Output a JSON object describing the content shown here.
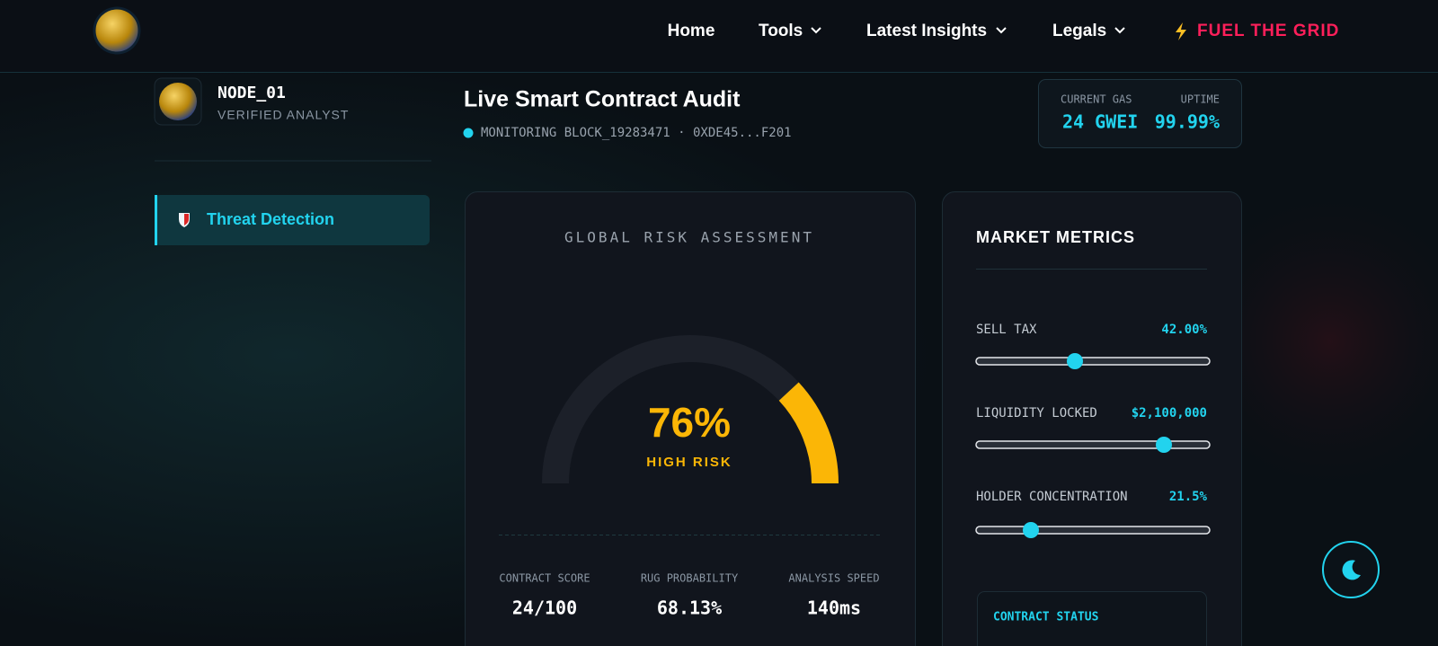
{
  "nav": {
    "items": [
      "Home",
      "Tools",
      "Latest Insights",
      "Legals"
    ],
    "cta": "FUEL THE GRID"
  },
  "sidebar": {
    "user": "NODE_01",
    "role": "VERIFIED ANALYST",
    "menu": [
      "Threat Detection"
    ]
  },
  "header": {
    "title": "Live Smart Contract Audit",
    "status": "MONITORING BLOCK_19283471 · 0XDE45...F201",
    "stats": [
      {
        "label": "CURRENT GAS",
        "value": "24 GWEI"
      },
      {
        "label": "UPTIME",
        "value": "99.99%"
      }
    ]
  },
  "risk_card": {
    "title": "GLOBAL RISK ASSESSMENT",
    "score": "76%",
    "level": "HIGH RISK",
    "stats": [
      {
        "label": "CONTRACT SCORE",
        "value": "24/100"
      },
      {
        "label": "RUG PROBABILITY",
        "value": "68.13%"
      },
      {
        "label": "ANALYSIS SPEED",
        "value": "140ms"
      }
    ]
  },
  "market_card": {
    "title": "MARKET METRICS",
    "metrics": [
      {
        "label": "SELL TAX",
        "value": "42.00%"
      },
      {
        "label": "LIQUIDITY LOCKED",
        "value": "$2,100,000"
      },
      {
        "label": "HOLDER CONCENTRATION",
        "value": "21.5%"
      }
    ],
    "status_title": "CONTRACT STATUS"
  }
}
